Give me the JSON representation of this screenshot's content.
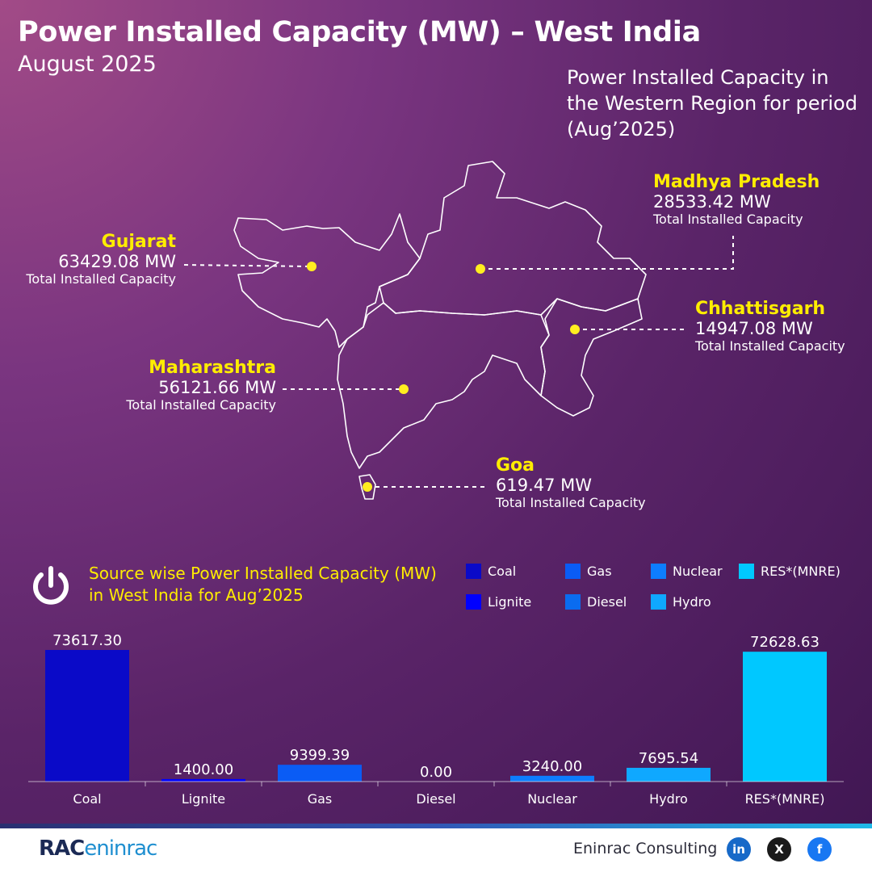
{
  "header": {
    "title": "Power Installed Capacity (MW) – West India",
    "subtitle": "August 2025",
    "region_note": "Power Installed Capacity in the Western Region for period (Aug’2025)"
  },
  "states": {
    "gujarat": {
      "name": "Gujarat",
      "value": "63429.08 MW",
      "caption": "Total Installed Capacity"
    },
    "madhya_pradesh": {
      "name": "Madhya Pradesh",
      "value": "28533.42 MW",
      "caption": "Total Installed Capacity"
    },
    "chhattisgarh": {
      "name": "Chhattisgarh",
      "value": "14947.08 MW",
      "caption": "Total Installed Capacity"
    },
    "maharashtra": {
      "name": "Maharashtra",
      "value": "56121.66 MW",
      "caption": "Total Installed Capacity"
    },
    "goa": {
      "name": "Goa",
      "value": "619.47 MW",
      "caption": "Total Installed Capacity"
    }
  },
  "source_section": {
    "title_line1": "Source wise Power Installed Capacity (MW)",
    "title_line2": "in West India for Aug’2025",
    "icon": "power-icon"
  },
  "legend": [
    {
      "label": "Coal",
      "color": "#0a0ac8"
    },
    {
      "label": "Gas",
      "color": "#0a5cf5"
    },
    {
      "label": "Nuclear",
      "color": "#0d7dff"
    },
    {
      "label": "RES*(MNRE)",
      "color": "#00c8ff"
    },
    {
      "label": "Lignite",
      "color": "#0000ff"
    },
    {
      "label": "Diesel",
      "color": "#0a6cf0"
    },
    {
      "label": "Hydro",
      "color": "#0fa8ff"
    }
  ],
  "chart_data": {
    "type": "bar",
    "title": "Source wise Power Installed Capacity (MW) in West India for Aug’2025",
    "categories": [
      "Coal",
      "Lignite",
      "Gas",
      "Diesel",
      "Nuclear",
      "Hydro",
      "RES*(MNRE)"
    ],
    "values": [
      73617.3,
      1400.0,
      9399.39,
      0.0,
      3240.0,
      7695.54,
      72628.63
    ],
    "value_labels": [
      "73617.30",
      "1400.00",
      "9399.39",
      "0.00",
      "3240.00",
      "7695.54",
      "72628.63"
    ],
    "colors": [
      "#0a0ac8",
      "#0000ff",
      "#0a5cf5",
      "#0a6cf0",
      "#0d7dff",
      "#0fa8ff",
      "#00c8ff"
    ],
    "ylim": [
      0,
      73617.3
    ],
    "xlabel": "",
    "ylabel": "",
    "grid": false
  },
  "footer": {
    "company": "Eninrac Consulting",
    "logo_bold": "RAC",
    "logo_light": "eninrac",
    "social": [
      {
        "name": "linkedin-icon",
        "glyph": "in",
        "color": "#1769c8"
      },
      {
        "name": "x-icon",
        "glyph": "X",
        "color": "#1a1a1a"
      },
      {
        "name": "facebook-icon",
        "glyph": "f",
        "color": "#1877f2"
      }
    ]
  }
}
